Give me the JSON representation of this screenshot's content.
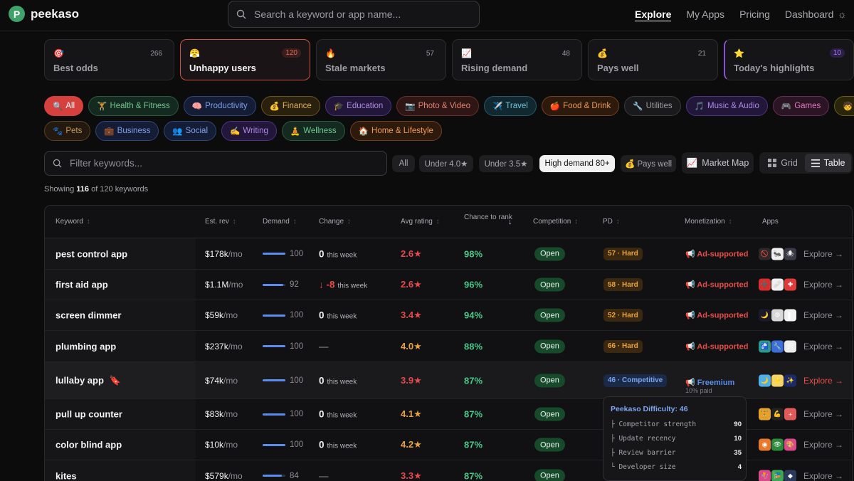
{
  "brand": {
    "logo_letter": "P",
    "name": "peekaso"
  },
  "search": {
    "placeholder": "Search a keyword or app name..."
  },
  "nav": {
    "items": [
      "Explore",
      "My Apps",
      "Pricing",
      "Dashboard"
    ],
    "active": "Explore"
  },
  "categories": [
    {
      "icon": "🎯",
      "label": "Best odds",
      "count": "266"
    },
    {
      "icon": "😤",
      "label": "Unhappy users",
      "count": "120",
      "active": true
    },
    {
      "icon": "🔥",
      "label": "Stale markets",
      "count": "57"
    },
    {
      "icon": "📈",
      "label": "Rising demand",
      "count": "48"
    },
    {
      "icon": "💰",
      "label": "Pays well",
      "count": "21"
    },
    {
      "icon": "⭐",
      "label": "Today's highlights",
      "count": "10"
    }
  ],
  "genre_chips_row1": [
    {
      "icon": "🔍",
      "label": "All",
      "color": "red"
    },
    {
      "icon": "🏋",
      "label": "Health & Fitness",
      "color": "green"
    },
    {
      "icon": "🧠",
      "label": "Productivity",
      "color": "blue"
    },
    {
      "icon": "💰",
      "label": "Finance",
      "color": "amber"
    },
    {
      "icon": "🎓",
      "label": "Education",
      "color": "purple"
    },
    {
      "icon": "📷",
      "label": "Photo & Video",
      "color": "coral"
    },
    {
      "icon": "✈️",
      "label": "Travel",
      "color": "teal"
    },
    {
      "icon": "🍎",
      "label": "Food & Drink",
      "color": "orange"
    },
    {
      "icon": "🔧",
      "label": "Utilities",
      "color": "gray"
    },
    {
      "icon": "🎵",
      "label": "Music & Audio",
      "color": "purple"
    },
    {
      "icon": "🎮",
      "label": "Games",
      "color": "pink"
    },
    {
      "icon": "🧒",
      "label": "Kids",
      "color": "yellow"
    }
  ],
  "genre_chips_row2": [
    {
      "icon": "🐾",
      "label": "Pets",
      "color": "brown"
    },
    {
      "icon": "💼",
      "label": "Business",
      "color": "blue"
    },
    {
      "icon": "👥",
      "label": "Social",
      "color": "blue"
    },
    {
      "icon": "✍️",
      "label": "Writing",
      "color": "purple"
    },
    {
      "icon": "🧘",
      "label": "Wellness",
      "color": "green"
    },
    {
      "icon": "🏠",
      "label": "Home & Lifestyle",
      "color": "orange"
    }
  ],
  "filter": {
    "placeholder": "Filter keywords..."
  },
  "quick_filters": [
    "All",
    "Under 4.0★",
    "Under 3.5★",
    "High demand 80+",
    "💰 Pays well"
  ],
  "quick_filter_active": "High demand 80+",
  "market_map_label": "Market Map",
  "view_toggle": {
    "grid": "Grid",
    "table": "Table",
    "active": "Table"
  },
  "showing": {
    "prefix": "Showing",
    "shown": "116",
    "suffix": "of 120 keywords"
  },
  "columns": [
    "Keyword",
    "Est. rev",
    "Demand",
    "Change",
    "Avg rating",
    "Chance to rank",
    "Competition",
    "PD",
    "Monetization",
    "Apps"
  ],
  "rows": [
    {
      "keyword": "pest control app",
      "rev": "$178k",
      "rev_unit": "/mo",
      "demand": 100,
      "change": "0",
      "change_note": "this week",
      "change_type": "flat",
      "rating": "2.6★",
      "rating_color": "#e5484d",
      "chance": "98%",
      "competition": "Open",
      "pd": "57 · Hard",
      "pd_type": "hard",
      "monetization": "📢 Ad-supported",
      "apps": [
        {
          "glyph": "🚫",
          "bg": "#2a2a2a"
        },
        {
          "glyph": "🐜",
          "bg": "#f0f0f0"
        },
        {
          "glyph": "🕷",
          "bg": "#3a3a46"
        }
      ],
      "explore": "Explore →"
    },
    {
      "keyword": "first aid app",
      "rev": "$1.1M",
      "rev_unit": "/mo",
      "demand": 92,
      "change": "↓ -8",
      "change_note": "this week",
      "change_type": "down",
      "rating": "2.6★",
      "rating_color": "#e5484d",
      "chance": "96%",
      "competition": "Open",
      "pd": "58 · Hard",
      "pd_type": "hard",
      "monetization": "📢 Ad-supported",
      "apps": [
        {
          "glyph": "➕",
          "bg": "#d92c2c"
        },
        {
          "glyph": "🩹",
          "bg": "#f0f0f0"
        },
        {
          "glyph": "✚",
          "bg": "#e03a3a"
        }
      ],
      "explore": "Explore →"
    },
    {
      "keyword": "screen dimmer",
      "rev": "$59k",
      "rev_unit": "/mo",
      "demand": 100,
      "change": "0",
      "change_note": "this week",
      "change_type": "flat",
      "rating": "3.4★",
      "rating_color": "#e5484d",
      "chance": "94%",
      "competition": "Open",
      "pd": "52 · Hard",
      "pd_type": "hard",
      "monetization": "📢 Ad-supported",
      "apps": [
        {
          "glyph": "🌙",
          "bg": "#1a1a2a"
        },
        {
          "glyph": "⚙",
          "bg": "#d8d8d8"
        },
        {
          "glyph": "▌",
          "bg": "#f2f2f2"
        }
      ],
      "explore": "Explore →"
    },
    {
      "keyword": "plumbing app",
      "rev": "$237k",
      "rev_unit": "/mo",
      "demand": 100,
      "change": "—",
      "change_note": "",
      "change_type": "dash",
      "rating": "4.0★",
      "rating_color": "#e9a23f",
      "chance": "88%",
      "competition": "Open",
      "pd": "66 · Hard",
      "pd_type": "hard",
      "monetization": "📢 Ad-supported",
      "apps": [
        {
          "glyph": "🚰",
          "bg": "#2b9a8a"
        },
        {
          "glyph": "🔧",
          "bg": "#3d6ed8"
        },
        {
          "glyph": "🛠",
          "bg": "#ececec"
        }
      ],
      "explore": "Explore →"
    },
    {
      "keyword": "lullaby app",
      "kw_icon": "🔖",
      "rev": "$74k",
      "rev_unit": "/mo",
      "demand": 100,
      "change": "0",
      "change_note": "this week",
      "change_type": "flat",
      "rating": "3.9★",
      "rating_color": "#e5484d",
      "chance": "87%",
      "competition": "Open",
      "pd": "46 · Competitive",
      "pd_type": "competitive",
      "monetization": "📢 Freemium",
      "monetization_sub": "10% paid",
      "apps": [
        {
          "glyph": "🌙",
          "bg": "#4fb0e8"
        },
        {
          "glyph": "⭐",
          "bg": "#f3d56a"
        },
        {
          "glyph": "✨",
          "bg": "#1d2a6a"
        }
      ],
      "explore": "Explore →",
      "hover": true
    },
    {
      "keyword": "pull up counter",
      "rev": "$83k",
      "rev_unit": "/mo",
      "demand": 100,
      "change": "0",
      "change_note": "this week",
      "change_type": "flat",
      "rating": "4.1★",
      "rating_color": "#e9a23f",
      "chance": "87%",
      "competition": "Open",
      "apps": [
        {
          "glyph": "🏋",
          "bg": "#e6a12a"
        },
        {
          "glyph": "💪",
          "bg": "#222"
        },
        {
          "glyph": "+",
          "bg": "#e25a5a"
        }
      ],
      "explore": "Explore →"
    },
    {
      "keyword": "color blind app",
      "rev": "$10k",
      "rev_unit": "/mo",
      "demand": 100,
      "change": "0",
      "change_note": "this week",
      "change_type": "flat",
      "rating": "4.2★",
      "rating_color": "#e9a23f",
      "chance": "87%",
      "competition": "Open",
      "apps": [
        {
          "glyph": "◉",
          "bg": "#e8782a"
        },
        {
          "glyph": "👁",
          "bg": "#2c8a3a"
        },
        {
          "glyph": "🎨",
          "bg": "#d84a8a"
        }
      ],
      "explore": "Explore →"
    },
    {
      "keyword": "kites",
      "rev": "$579k",
      "rev_unit": "/mo",
      "demand": 84,
      "change": "—",
      "change_note": "",
      "change_type": "dash",
      "rating": "3.3★",
      "rating_color": "#e5484d",
      "chance": "87%",
      "competition": "Open",
      "apps": [
        {
          "glyph": "🪁",
          "bg": "#d84a8a"
        },
        {
          "glyph": "🎏",
          "bg": "#3aa85a"
        },
        {
          "glyph": "◆",
          "bg": "#2a3a5a"
        }
      ],
      "explore": "Explore →"
    }
  ],
  "tooltip": {
    "title": "Peekaso Difficulty: 46",
    "items": [
      {
        "label": "├ Competitor strength",
        "value": "90"
      },
      {
        "label": "├ Update recency",
        "value": "10"
      },
      {
        "label": "├ Review barrier",
        "value": "35"
      },
      {
        "label": "└ Developer size",
        "value": "4"
      }
    ]
  }
}
